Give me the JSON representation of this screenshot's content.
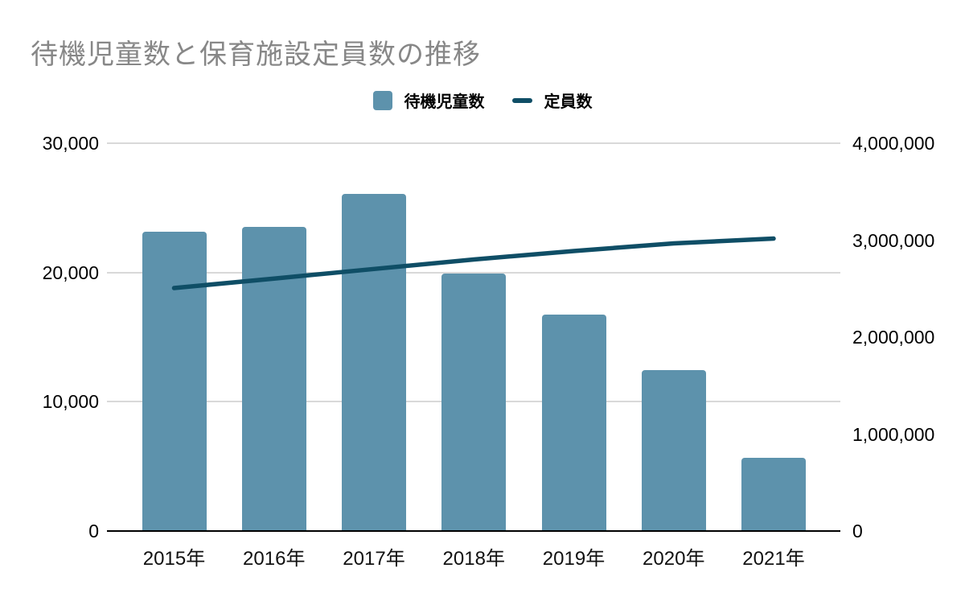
{
  "chart_data": {
    "type": "combo",
    "title": "待機児童数と保育施設定員数の推移",
    "categories": [
      "2015年",
      "2016年",
      "2017年",
      "2018年",
      "2019年",
      "2020年",
      "2021年"
    ],
    "series": [
      {
        "name": "待機児童数",
        "type": "bar",
        "axis": "left",
        "color": "#5d92ac",
        "values": [
          23167,
          23553,
          26081,
          19895,
          16772,
          12439,
          5634
        ]
      },
      {
        "name": "定員数",
        "type": "line",
        "axis": "right",
        "color": "#0f4e66",
        "values": [
          2506000,
          2604000,
          2703000,
          2801000,
          2888000,
          2967000,
          3017000
        ]
      }
    ],
    "left_axis": {
      "min": 0,
      "max": 30000,
      "tick_values": [
        0,
        10000,
        20000,
        30000
      ],
      "tick_labels": [
        "0",
        "10,000",
        "20,000",
        "30,000"
      ]
    },
    "right_axis": {
      "min": 0,
      "max": 4000000,
      "tick_values": [
        0,
        1000000,
        2000000,
        3000000,
        4000000
      ],
      "tick_labels": [
        "0",
        "1,000,000",
        "2,000,000",
        "3,000,000",
        "4,000,000"
      ]
    },
    "grid": "horizontal",
    "legend_position": "top-center",
    "colors": {
      "title": "#878787",
      "grid": "#d9d9d9",
      "axis_line": "#000000",
      "axis_text": "#000000",
      "background": "#ffffff"
    }
  }
}
